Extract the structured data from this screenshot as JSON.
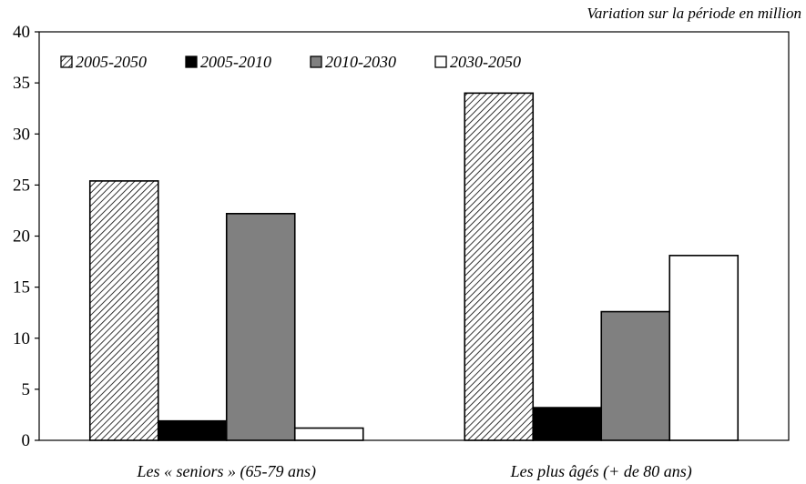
{
  "chart_data": {
    "type": "bar",
    "ylabel": "Variation sur la période en million",
    "ylim": [
      0,
      40
    ],
    "yticks": [
      0,
      5,
      10,
      15,
      20,
      25,
      30,
      35,
      40
    ],
    "categories": [
      "Les « seniors » (65-79 ans)",
      "Les plus âgés (+ de 80 ans)"
    ],
    "series": [
      {
        "name": "2005-2050",
        "values": [
          25.4,
          34.0
        ],
        "fill": "hatch"
      },
      {
        "name": "2005-2010",
        "values": [
          1.9,
          3.2
        ],
        "fill": "#000000"
      },
      {
        "name": "2010-2030",
        "values": [
          22.2,
          12.6
        ],
        "fill": "#808080"
      },
      {
        "name": "2030-2050",
        "values": [
          1.2,
          18.1
        ],
        "fill": "#ffffff"
      }
    ],
    "grid": false,
    "legend_position": "top-left"
  }
}
